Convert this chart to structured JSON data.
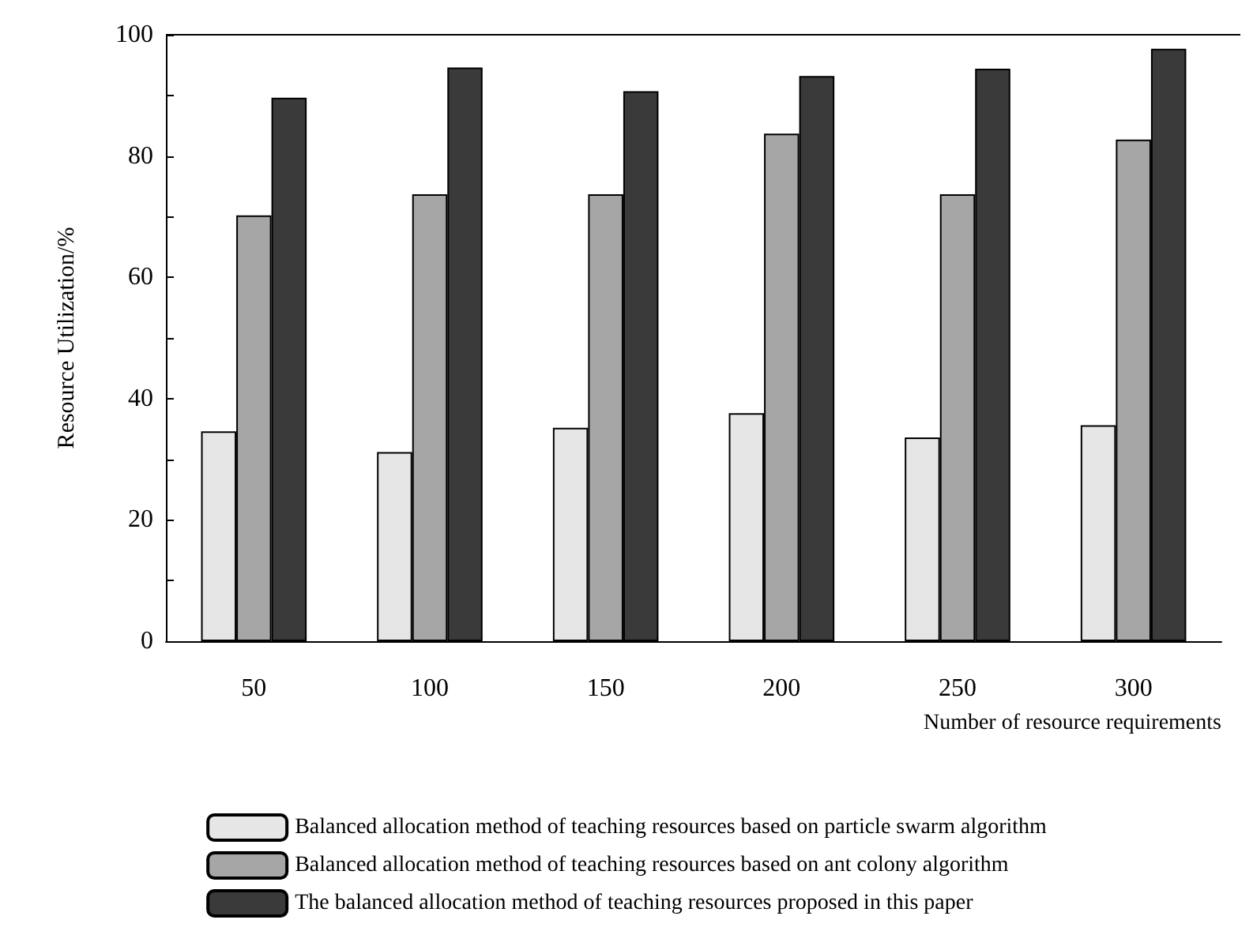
{
  "chart_data": {
    "type": "bar",
    "xlabel": "Number of resource requirements",
    "ylabel": "Resource Utilization/%",
    "categories": [
      "50",
      "100",
      "150",
      "200",
      "250",
      "300"
    ],
    "series": [
      {
        "name": "Balanced allocation method of teaching resources based on particle swarm algorithm",
        "color": "#e6e6e6",
        "values": [
          34.6,
          31.2,
          35.2,
          37.6,
          33.6,
          35.6
        ]
      },
      {
        "name": "Balanced allocation method of teaching resources based on ant colony algorithm",
        "color": "#a6a6a6",
        "values": [
          70.2,
          73.7,
          73.7,
          83.7,
          73.7,
          82.7
        ]
      },
      {
        "name": "The balanced allocation method of teaching resources proposed in this paper",
        "color": "#3a3a3a",
        "values": [
          89.6,
          94.6,
          90.7,
          93.2,
          94.4,
          97.7
        ]
      }
    ],
    "ylim": [
      0,
      100
    ],
    "yticks": [
      0,
      {
        "value": 10,
        "label": null
      },
      20,
      {
        "value": 30,
        "label": null
      },
      40,
      {
        "value": 50,
        "label": null
      },
      60,
      {
        "value": 70,
        "label": null
      },
      80,
      {
        "value": 90,
        "label": null
      },
      100
    ],
    "grid": false,
    "legend": "bottom"
  }
}
